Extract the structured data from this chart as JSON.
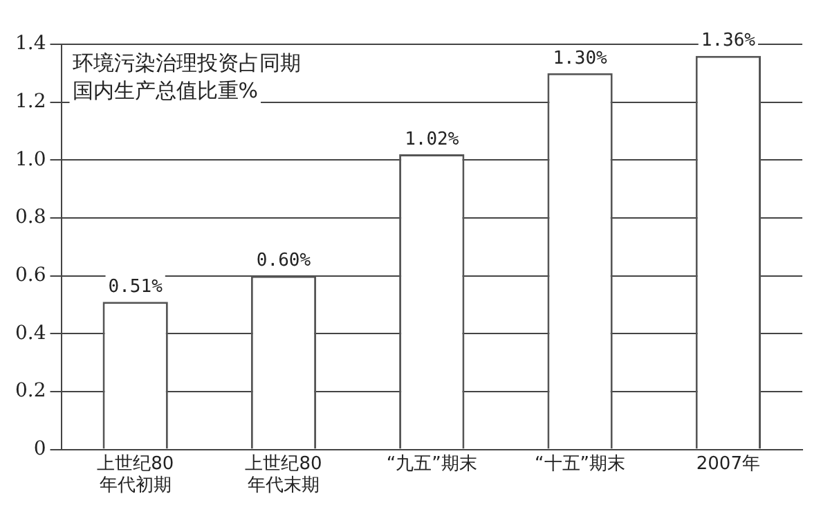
{
  "chart_data": {
    "type": "bar",
    "title": "环境污染治理投资占同期国内生产总值比重%",
    "categories": [
      "上世纪80年代初期",
      "上世纪80年代末期",
      "“九五”期末",
      "“十五”期末",
      "2007年"
    ],
    "values": [
      0.51,
      0.6,
      1.02,
      1.3,
      1.36
    ],
    "value_labels": [
      "0.51%",
      "0.60%",
      "1.02%",
      "1.30%",
      "1.36%"
    ],
    "color": "#ffffff",
    "ylim": [
      0,
      1.4
    ],
    "yticks": [
      0,
      0.2,
      0.4,
      0.6,
      0.8,
      {
        "value": 1,
        "label": "1.0"
      },
      1.2,
      1.4
    ],
    "grid": "y"
  }
}
